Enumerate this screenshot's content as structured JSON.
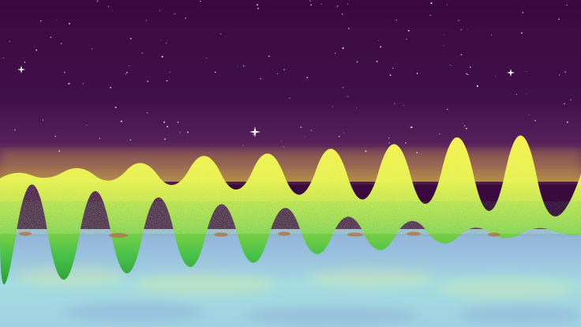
{
  "scene": {
    "colors": {
      "sky_top": "#3b0a3f",
      "sky_mid": "#45124a",
      "sky_horizon": "#6a2a5c",
      "horizon_glow": "#c8a04a",
      "meadow_yellow": "#f2ee3a",
      "meadow_lime": "#c8e83c",
      "meadow_green": "#3fbf4a",
      "meadow_dark": "#2a9a3a",
      "dirt": "#b07a4a",
      "water_blue": "#8fb8d8",
      "water_light": "#a6dfe0",
      "water_mist": "#c9e6b4"
    },
    "elements": {
      "sky": "night-sky",
      "stars": "star-field",
      "sparkles": "sparkle-stars",
      "meadow": "flower-meadow",
      "water": "misty-water"
    }
  }
}
